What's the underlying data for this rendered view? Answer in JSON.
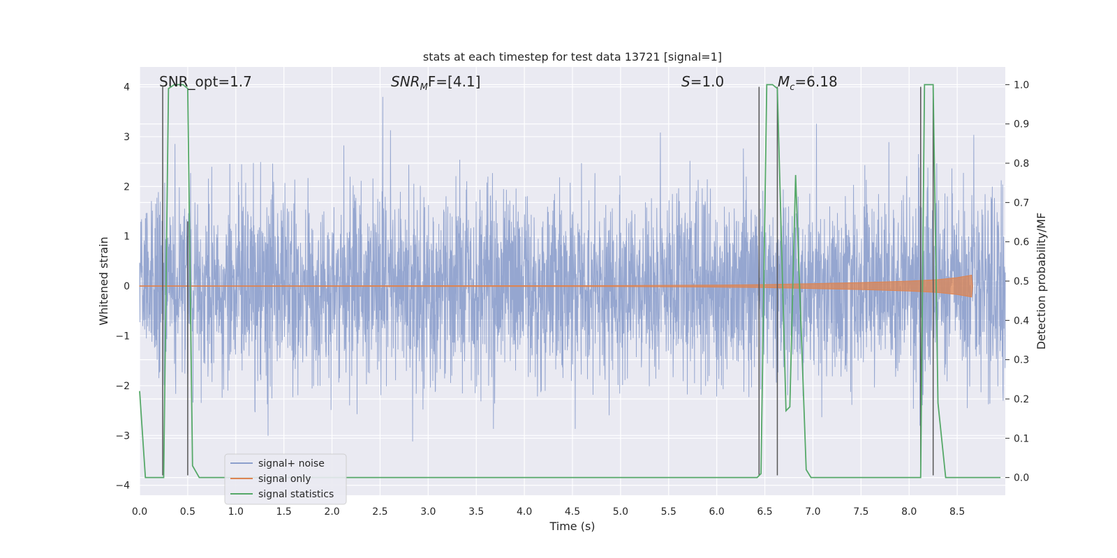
{
  "chart_data": {
    "type": "line",
    "title": "stats at each timestep for test data 13721 [signal=1]",
    "xlabel": "Time (s)",
    "ylabel_left": "Whitened strain",
    "ylabel_right": "Detection probability/MF",
    "xlim": [
      0.0,
      9.0
    ],
    "ylim_left": [
      -4.2,
      4.4
    ],
    "ylim_right": [
      -0.045,
      1.045
    ],
    "x_ticks": [
      0.0,
      0.5,
      1.0,
      1.5,
      2.0,
      2.5,
      3.0,
      3.5,
      4.0,
      4.5,
      5.0,
      5.5,
      6.0,
      6.5,
      7.0,
      7.5,
      8.0,
      8.5
    ],
    "x_tick_labels": [
      "0.0",
      "0.5",
      "1.0",
      "1.5",
      "2.0",
      "2.5",
      "3.0",
      "3.5",
      "4.0",
      "4.5",
      "5.0",
      "5.5",
      "6.0",
      "6.5",
      "7.0",
      "7.5",
      "8.0",
      "8.5"
    ],
    "y_left_ticks": [
      -4,
      -3,
      -2,
      -1,
      0,
      1,
      2,
      3,
      4
    ],
    "y_left_tick_labels": [
      "−4",
      "−3",
      "−2",
      "−1",
      "0",
      "1",
      "2",
      "3",
      "4"
    ],
    "y_right_ticks": [
      0.0,
      0.1,
      0.2,
      0.3,
      0.4,
      0.5,
      0.6,
      0.7,
      0.8,
      0.9,
      1.0
    ],
    "y_right_tick_labels": [
      "0.0",
      "0.1",
      "0.2",
      "0.3",
      "0.4",
      "0.5",
      "0.6",
      "0.7",
      "0.8",
      "0.9",
      "1.0"
    ],
    "grid": true,
    "annotations": {
      "snr_opt": "SNR_opt=1.7",
      "snr_mf_label": "SNR",
      "snr_mf_sub": "M",
      "snr_mf_rest": "F=[4.1]",
      "s_label": "S",
      "s_rest": "=1.0",
      "mc_label": "M",
      "mc_sub": "c",
      "mc_rest": "=6.18"
    },
    "legend": {
      "position": "lower-left",
      "entries": [
        "signal+ noise",
        "signal only",
        "signal statistics"
      ]
    },
    "colors": {
      "noise": "#8c9fcc",
      "signal": "#dd8452",
      "statistics": "#55a868",
      "vlines": "#555555",
      "background": "#eaeaf2",
      "grid": "#ffffff"
    },
    "series": [
      {
        "name": "signal+ noise",
        "axis": "left",
        "description_values": "noise envelope amplitude about 1.0 std",
        "noise_std": 0.95,
        "seed": 13721
      },
      {
        "name": "signal only",
        "axis": "left",
        "envelope_x": [
          0.0,
          5.0,
          6.0,
          6.5,
          7.0,
          7.5,
          8.0,
          8.3,
          8.5,
          8.65,
          8.66
        ],
        "envelope_y": [
          0.005,
          0.01,
          0.02,
          0.03,
          0.05,
          0.07,
          0.1,
          0.13,
          0.17,
          0.22,
          0.0
        ]
      },
      {
        "name": "signal statistics",
        "axis": "right",
        "x": [
          0.0,
          0.06,
          0.25,
          0.3,
          0.36,
          0.45,
          0.5,
          0.55,
          0.62,
          6.42,
          6.46,
          6.52,
          6.58,
          6.63,
          6.72,
          6.76,
          6.82,
          6.93,
          6.98,
          7.03,
          7.1,
          8.12,
          8.16,
          8.2,
          8.25,
          8.3,
          8.38,
          8.95
        ],
        "y": [
          0.22,
          0.0,
          0.0,
          0.99,
          1.0,
          1.0,
          0.99,
          0.03,
          0.0,
          0.0,
          0.01,
          1.0,
          1.0,
          0.99,
          0.17,
          0.18,
          0.77,
          0.02,
          0.0,
          0.0,
          0.0,
          0.0,
          1.0,
          1.0,
          1.0,
          0.19,
          0.0,
          0.0
        ]
      }
    ],
    "vertical_lines": [
      {
        "x": 0.24,
        "y_from": -3.8,
        "y_to": 4.0
      },
      {
        "x": 0.5,
        "y_from": -3.8,
        "y_to": 1.3
      },
      {
        "x": 6.44,
        "y_from": -3.8,
        "y_to": 4.0
      },
      {
        "x": 6.63,
        "y_from": -3.8,
        "y_to": 4.0
      },
      {
        "x": 8.12,
        "y_from": -3.8,
        "y_to": 4.0
      },
      {
        "x": 8.25,
        "y_from": -3.8,
        "y_to": 4.0
      }
    ]
  }
}
